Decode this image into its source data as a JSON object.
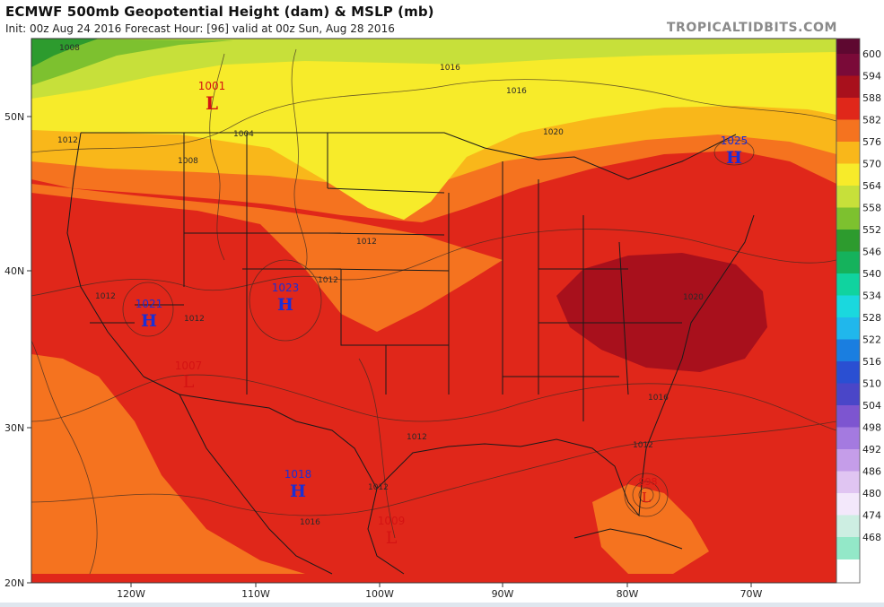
{
  "header": {
    "title": "ECMWF 500mb Geopotential Height (dam) & MSLP (mb)",
    "subtitle": "Init: 00z Aug 24 2016   Forecast Hour: [96]   valid at 00z Sun, Aug 28 2016",
    "brand": "TROPICALTIDBITS.COM"
  },
  "legend": {
    "levels": [
      {
        "label": "600",
        "color": "#7a0a38"
      },
      {
        "label": "594",
        "color": "#a8101c"
      },
      {
        "label": "588",
        "color": "#e0271a"
      },
      {
        "label": "582",
        "color": "#f5731f"
      },
      {
        "label": "576",
        "color": "#f9b71a"
      },
      {
        "label": "570",
        "color": "#f7eb2a"
      },
      {
        "label": "564",
        "color": "#c7e03a"
      },
      {
        "label": "558",
        "color": "#7dc12f"
      },
      {
        "label": "552",
        "color": "#2d9b2e"
      },
      {
        "label": "546",
        "color": "#15b25c"
      },
      {
        "label": "540",
        "color": "#10d39f"
      },
      {
        "label": "534",
        "color": "#1ad8de"
      },
      {
        "label": "528",
        "color": "#20b7ec"
      },
      {
        "label": "522",
        "color": "#1a7ee0"
      },
      {
        "label": "516",
        "color": "#2a4fd2"
      },
      {
        "label": "510",
        "color": "#4a46c8"
      },
      {
        "label": "504",
        "color": "#7d55d0"
      },
      {
        "label": "498",
        "color": "#a47ae0"
      },
      {
        "label": "492",
        "color": "#c59de9"
      },
      {
        "label": "486",
        "color": "#e0c5f2"
      },
      {
        "label": "480",
        "color": "#f3e8fb"
      },
      {
        "label": "474",
        "color": "#cdeee2"
      },
      {
        "label": "468",
        "color": "#93e8c8"
      }
    ]
  },
  "lat_labels": [
    "50N",
    "40N",
    "30N",
    "20N"
  ],
  "lon_labels": [
    "120W",
    "110W",
    "100W",
    "90W",
    "80W",
    "70W"
  ],
  "pressure_centers": [
    {
      "type": "L",
      "value": "1001",
      "color": "#d41313"
    },
    {
      "type": "H",
      "value": "1025",
      "color": "#1a2fd6"
    },
    {
      "type": "H",
      "value": "1021",
      "color": "#1a2fd6"
    },
    {
      "type": "H",
      "value": "1023",
      "color": "#1a2fd6"
    },
    {
      "type": "H",
      "value": "1018",
      "color": "#1a2fd6"
    },
    {
      "type": "L",
      "value": "1009",
      "color": "#d41313"
    },
    {
      "type": "L",
      "value": "1007",
      "color": "#d41313"
    },
    {
      "type": "L",
      "value": "998",
      "color": "#d41313"
    }
  ],
  "isobar_labels": [
    "1008",
    "1016",
    "1016",
    "1012",
    "1008",
    "1004",
    "1020",
    "1012",
    "1012",
    "1012",
    "1012",
    "1012",
    "1016",
    "1012",
    "1016",
    "1020",
    "1012"
  ]
}
